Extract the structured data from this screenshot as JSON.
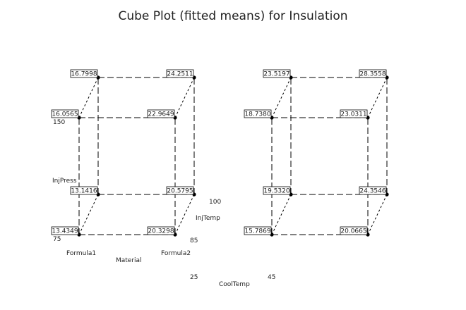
{
  "title": "Cube Plot (fitted means) for Insulation",
  "chart_data": {
    "type": "cube",
    "title": "Cube Plot (fitted means) for Insulation",
    "factors": {
      "Material": [
        "Formula1",
        "Formula2"
      ],
      "InjTemp": [
        "85",
        "100"
      ],
      "InjPress": [
        "75",
        "150"
      ],
      "CoolTemp": [
        "25",
        "45"
      ]
    },
    "axis_labels": {
      "material": "Material",
      "injtemp": "InjTemp",
      "injpress": "InjPress",
      "cooltemp": "CoolTemp"
    },
    "tick_labels": {
      "material_lo": "Formula1",
      "material_hi": "Formula2",
      "injtemp_lo": "85",
      "injtemp_hi": "100",
      "injpress_lo": "75",
      "injpress_hi": "150",
      "cooltemp_lo": "25",
      "cooltemp_hi": "45"
    },
    "cubes": [
      {
        "cooltemp": "25",
        "points": [
          {
            "material": "Formula1",
            "injtemp": "85",
            "injpress": "75",
            "value": "13.4349"
          },
          {
            "material": "Formula2",
            "injtemp": "85",
            "injpress": "75",
            "value": "20.3298"
          },
          {
            "material": "Formula1",
            "injtemp": "100",
            "injpress": "75",
            "value": "13.1416"
          },
          {
            "material": "Formula2",
            "injtemp": "100",
            "injpress": "75",
            "value": "20.5795"
          },
          {
            "material": "Formula1",
            "injtemp": "85",
            "injpress": "150",
            "value": "16.0565"
          },
          {
            "material": "Formula2",
            "injtemp": "85",
            "injpress": "150",
            "value": "22.9649"
          },
          {
            "material": "Formula1",
            "injtemp": "100",
            "injpress": "150",
            "value": "16.7998"
          },
          {
            "material": "Formula2",
            "injtemp": "100",
            "injpress": "150",
            "value": "24.2511"
          }
        ]
      },
      {
        "cooltemp": "45",
        "points": [
          {
            "material": "Formula1",
            "injtemp": "85",
            "injpress": "75",
            "value": "15.7869"
          },
          {
            "material": "Formula2",
            "injtemp": "85",
            "injpress": "75",
            "value": "20.0665"
          },
          {
            "material": "Formula1",
            "injtemp": "100",
            "injpress": "75",
            "value": "19.5320"
          },
          {
            "material": "Formula2",
            "injtemp": "100",
            "injpress": "75",
            "value": "24.3546"
          },
          {
            "material": "Formula1",
            "injtemp": "85",
            "injpress": "150",
            "value": "18.7380"
          },
          {
            "material": "Formula2",
            "injtemp": "85",
            "injpress": "150",
            "value": "23.0311"
          },
          {
            "material": "Formula1",
            "injtemp": "100",
            "injpress": "150",
            "value": "23.5197"
          },
          {
            "material": "Formula2",
            "injtemp": "100",
            "injpress": "150",
            "value": "28.3558"
          }
        ]
      }
    ]
  }
}
